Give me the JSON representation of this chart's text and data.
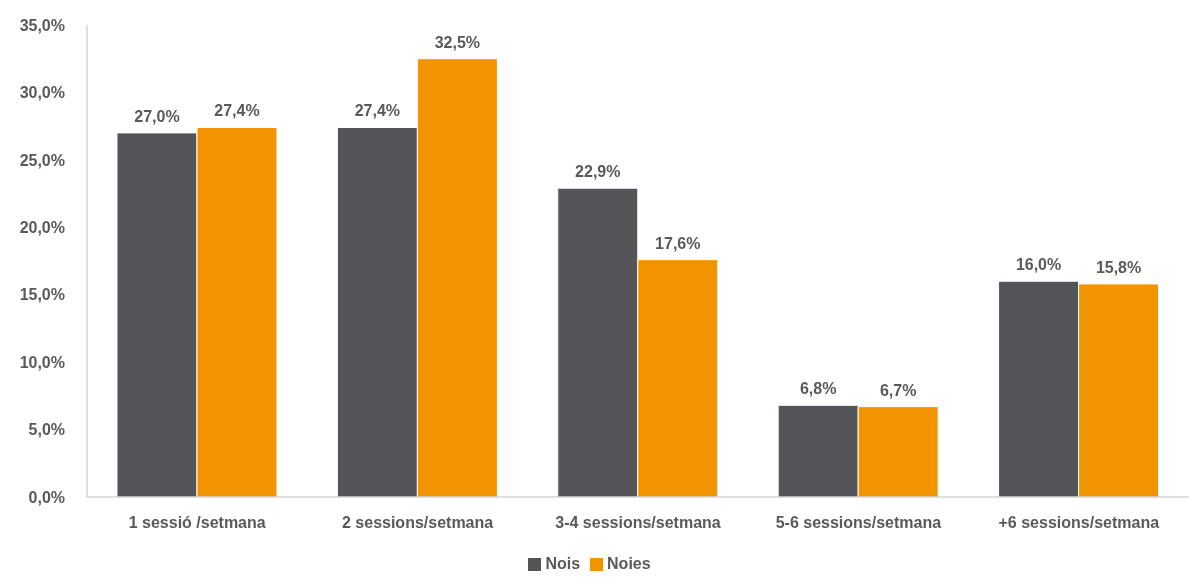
{
  "chart_data": {
    "type": "bar",
    "categories": [
      "1 sessió /setmana",
      "2 sessions/setmana",
      "3-4 sessions/setmana",
      "5-6 sessions/setmana",
      "+6 sessions/setmana"
    ],
    "series": [
      {
        "name": "Nois",
        "color": "#555559",
        "values": [
          27.0,
          27.4,
          22.9,
          6.8,
          16.0
        ],
        "value_labels": [
          "27,0%",
          "27,4%",
          "22,9%",
          "6,8%",
          "16,0%"
        ]
      },
      {
        "name": "Noies",
        "color": "#f29400",
        "values": [
          27.4,
          32.5,
          17.6,
          6.7,
          15.8
        ],
        "value_labels": [
          "27,4%",
          "32,5%",
          "17,6%",
          "6,7%",
          "15,8%"
        ]
      }
    ],
    "ylim": [
      0,
      35
    ],
    "yticks": [
      {
        "value": 0,
        "label": "0,0%"
      },
      {
        "value": 5,
        "label": "5,0%"
      },
      {
        "value": 10,
        "label": "10,0%"
      },
      {
        "value": 15,
        "label": "15,0%"
      },
      {
        "value": 20,
        "label": "20,0%"
      },
      {
        "value": 25,
        "label": "25,0%"
      },
      {
        "value": 30,
        "label": "30,0%"
      },
      {
        "value": 35,
        "label": "35,0%"
      }
    ],
    "legend": "bottom"
  }
}
